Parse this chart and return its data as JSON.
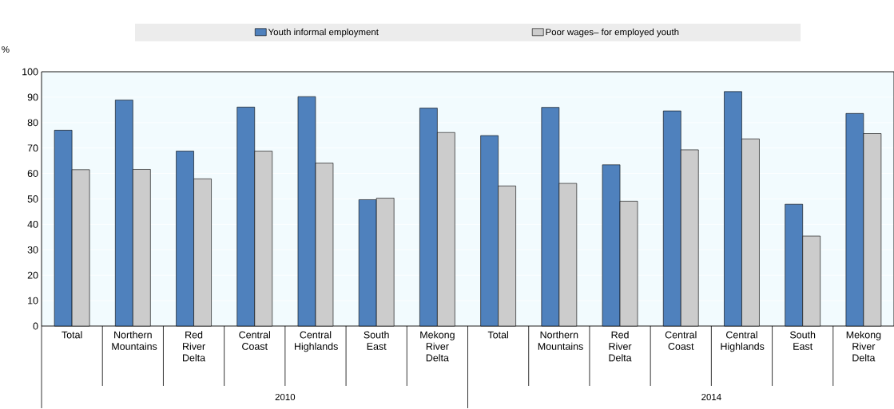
{
  "chart_data": {
    "type": "bar",
    "ylabel": "%",
    "categories": [
      "Total",
      "Northern Mountains",
      "Red River Delta",
      "Central Coast",
      "Central Highlands",
      "South East",
      "Mekong River Delta",
      "Total",
      "Northern Mountains",
      "Red River Delta",
      "Central Coast",
      "Central Highlands",
      "South East",
      "Mekong River Delta"
    ],
    "series": [
      {
        "name": "Youth informal employment",
        "color": "#4f81bd",
        "values": [
          77.0,
          88.9,
          68.8,
          86.1,
          90.2,
          49.7,
          85.7,
          74.9,
          86.0,
          63.4,
          84.6,
          92.2,
          47.9,
          83.6
        ]
      },
      {
        "name": "Poor wages– for employed youth",
        "color": "#cccccc",
        "values": [
          61.5,
          61.6,
          57.9,
          68.8,
          64.1,
          50.3,
          76.1,
          55.1,
          56.1,
          49.1,
          69.3,
          73.6,
          35.4,
          75.7
        ]
      }
    ],
    "annotations": [
      "2010",
      "2014"
    ],
    "ylim": [
      0,
      100
    ],
    "yticks": [
      0,
      10,
      20,
      30,
      40,
      50,
      60,
      70,
      80,
      90,
      100
    ],
    "grid": "y",
    "legend": "top"
  }
}
